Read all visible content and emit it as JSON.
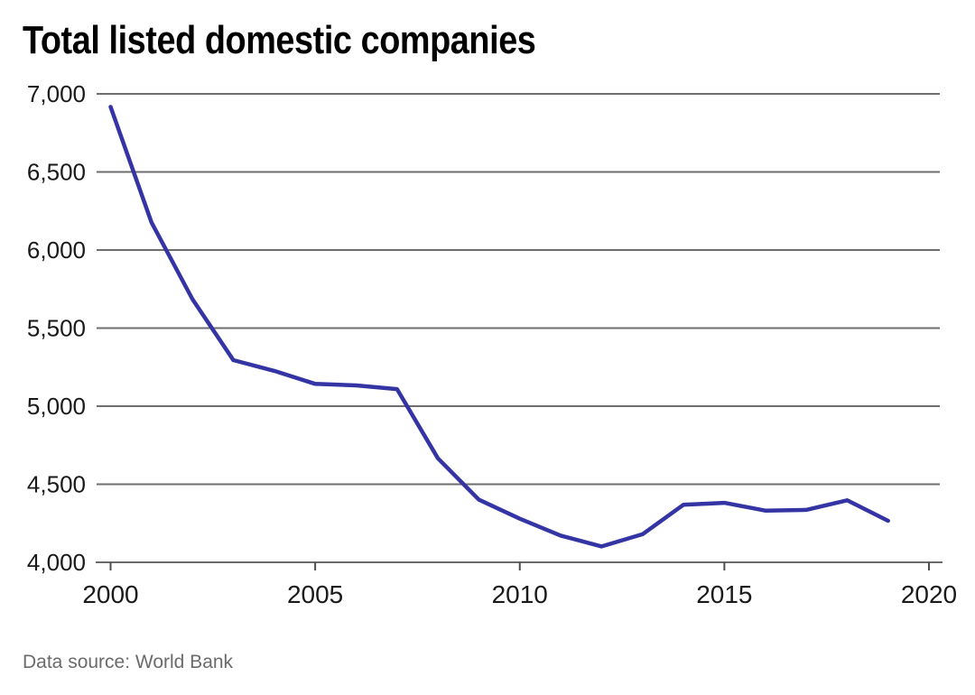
{
  "header": {
    "title": "Total listed domestic companies"
  },
  "footer": {
    "source": "Data source: World Bank"
  },
  "chart_data": {
    "type": "line",
    "title": "Total listed domestic companies",
    "source": "Data source: World Bank",
    "x": [
      2000,
      2001,
      2002,
      2003,
      2004,
      2005,
      2006,
      2007,
      2008,
      2009,
      2010,
      2011,
      2012,
      2013,
      2014,
      2015,
      2016,
      2017,
      2018,
      2019
    ],
    "series": [
      {
        "name": "Total listed domestic companies",
        "color": "#3434a4",
        "values": [
          6917,
          6177,
          5685,
          5295,
          5226,
          5143,
          5133,
          5109,
          4666,
          4401,
          4279,
          4171,
          4102,
          4180,
          4369,
          4381,
          4331,
          4336,
          4397,
          4266
        ]
      }
    ],
    "xlabel": "",
    "ylabel": "",
    "xlim": [
      2000,
      2020
    ],
    "ylim": [
      4000,
      7000
    ],
    "xticks": [
      2000,
      2005,
      2010,
      2015,
      2020
    ],
    "xtick_labels": [
      "2000",
      "2005",
      "2010",
      "2015",
      "2020"
    ],
    "yticks": [
      4000,
      4500,
      5000,
      5500,
      6000,
      6500,
      7000
    ],
    "ytick_labels": [
      "4,000",
      "4,500",
      "5,000",
      "5,500",
      "6,000",
      "6,500",
      "7,000"
    ],
    "grid": "horizontal",
    "legend": "none",
    "colors": {
      "line": "#3434a4",
      "gridline": "#6e6e6e",
      "axis": "#6b6b6b",
      "tick_mark": "#4d4d4d",
      "tick_label": "#1a1a1a",
      "title": "#000000",
      "source": "#6b6b6b",
      "background": "#ffffff"
    }
  }
}
